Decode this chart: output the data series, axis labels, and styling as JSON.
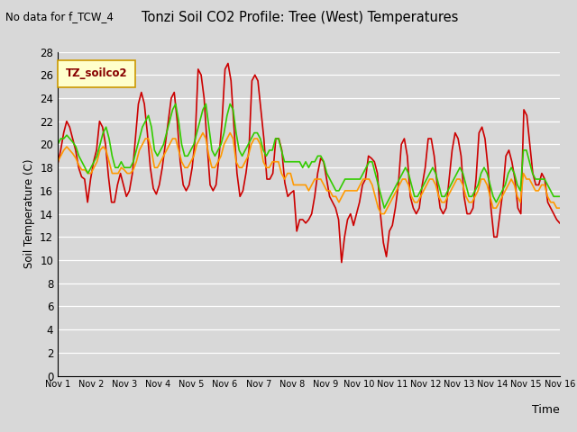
{
  "title": "Tonzi Soil CO2 Profile: Tree (West) Temperatures",
  "subtitle": "No data for f_TCW_4",
  "xlabel": "Time",
  "ylabel": "Soil Temperature (C)",
  "legend_label": "TZ_soilco2",
  "legend_box_color": "#ffffcc",
  "legend_box_edge": "#cc9900",
  "legend_text_color": "#880000",
  "bg_color": "#d8d8d8",
  "ylim": [
    0,
    28
  ],
  "yticks": [
    0,
    2,
    4,
    6,
    8,
    10,
    12,
    14,
    16,
    18,
    20,
    22,
    24,
    26,
    28
  ],
  "xtick_labels": [
    "Nov 1",
    "Nov 2",
    "Nov 3",
    "Nov 4",
    "Nov 5",
    "Nov 6",
    "Nov 7",
    "Nov 8",
    "Nov 9",
    "Nov 10",
    "Nov 11",
    "Nov 12",
    "Nov 13",
    "Nov 14",
    "Nov 15",
    "Nov 16"
  ],
  "series": {
    "neg2cm": {
      "color": "#cc0000",
      "linewidth": 1.2,
      "y": [
        18.3,
        19.5,
        21.0,
        22.0,
        21.5,
        20.5,
        19.5,
        18.0,
        17.2,
        17.0,
        15.0,
        17.0,
        18.5,
        19.5,
        22.0,
        21.5,
        20.0,
        17.2,
        15.0,
        15.0,
        16.5,
        17.5,
        16.5,
        15.5,
        16.0,
        17.5,
        20.5,
        23.5,
        24.5,
        23.5,
        21.0,
        18.0,
        16.2,
        15.7,
        16.5,
        18.0,
        20.0,
        22.0,
        24.0,
        24.5,
        22.0,
        18.5,
        16.5,
        16.0,
        16.5,
        18.0,
        20.5,
        26.5,
        26.0,
        24.0,
        20.0,
        16.5,
        16.0,
        16.5,
        19.0,
        22.0,
        26.5,
        27.0,
        25.5,
        21.5,
        17.5,
        15.5,
        16.0,
        17.5,
        19.5,
        25.5,
        26.0,
        25.5,
        23.0,
        20.5,
        17.0,
        17.0,
        17.5,
        20.5,
        20.5,
        19.5,
        16.7,
        15.5,
        15.8,
        16.0,
        12.5,
        13.5,
        13.5,
        13.2,
        13.5,
        14.0,
        15.5,
        17.5,
        18.8,
        18.5,
        17.0,
        15.5,
        15.0,
        14.5,
        13.5,
        9.8,
        12.0,
        13.5,
        14.0,
        13.0,
        14.0,
        15.0,
        16.5,
        17.0,
        19.0,
        18.8,
        18.5,
        17.5,
        14.0,
        11.5,
        10.3,
        12.5,
        13.0,
        14.5,
        16.5,
        20.0,
        20.5,
        19.0,
        15.5,
        14.5,
        14.0,
        14.5,
        16.5,
        18.0,
        20.5,
        20.5,
        19.0,
        16.5,
        14.5,
        14.0,
        14.5,
        17.0,
        19.5,
        21.0,
        20.5,
        19.0,
        15.5,
        14.0,
        14.0,
        14.5,
        17.0,
        21.0,
        21.5,
        20.5,
        18.0,
        14.5,
        12.0,
        12.0,
        14.0,
        16.0,
        19.0,
        19.5,
        18.5,
        17.0,
        14.5,
        14.0,
        23.0,
        22.5,
        20.0,
        17.5,
        16.5,
        16.5,
        17.5,
        17.0,
        15.0,
        14.5,
        14.0,
        13.5,
        13.2
      ]
    },
    "neg4cm": {
      "color": "#ff9900",
      "linewidth": 1.2,
      "y": [
        18.5,
        19.0,
        19.5,
        19.8,
        19.5,
        19.2,
        18.8,
        18.2,
        17.8,
        17.8,
        17.5,
        17.5,
        18.0,
        18.5,
        19.5,
        19.8,
        19.5,
        18.5,
        17.5,
        17.5,
        17.5,
        18.0,
        17.8,
        17.5,
        17.5,
        17.8,
        18.5,
        19.5,
        20.0,
        20.5,
        20.5,
        19.5,
        18.0,
        18.0,
        18.5,
        19.0,
        19.5,
        20.0,
        20.5,
        20.5,
        19.5,
        18.5,
        18.0,
        18.0,
        18.5,
        19.0,
        20.0,
        20.5,
        21.0,
        20.5,
        19.0,
        18.0,
        18.0,
        18.5,
        19.0,
        20.0,
        20.5,
        21.0,
        20.5,
        18.5,
        18.0,
        18.0,
        18.5,
        19.0,
        20.0,
        20.5,
        20.5,
        20.0,
        18.5,
        18.0,
        18.0,
        18.5,
        18.5,
        18.5,
        17.5,
        17.0,
        17.5,
        17.5,
        16.5,
        16.5,
        16.5,
        16.5,
        16.5,
        16.0,
        16.5,
        17.0,
        17.0,
        17.0,
        16.5,
        16.0,
        16.0,
        15.5,
        15.5,
        15.0,
        15.5,
        16.0,
        16.0,
        16.0,
        16.0,
        16.0,
        16.5,
        17.0,
        17.0,
        17.0,
        16.5,
        15.5,
        14.5,
        14.0,
        14.0,
        14.5,
        15.0,
        15.5,
        16.0,
        16.5,
        17.0,
        17.0,
        16.5,
        15.5,
        15.0,
        15.0,
        15.5,
        16.0,
        16.5,
        17.0,
        17.0,
        16.5,
        15.5,
        15.0,
        15.0,
        15.5,
        16.0,
        16.5,
        17.0,
        17.0,
        16.5,
        15.5,
        15.0,
        15.0,
        15.5,
        16.0,
        17.0,
        17.0,
        16.5,
        15.5,
        14.5,
        14.5,
        15.0,
        15.5,
        16.0,
        16.5,
        17.0,
        16.5,
        15.5,
        15.0,
        17.5,
        17.0,
        17.0,
        16.5,
        16.0,
        16.0,
        16.5,
        16.5,
        15.5,
        15.0,
        15.0,
        14.5,
        14.5
      ]
    },
    "neg8cm": {
      "color": "#33cc00",
      "linewidth": 1.2,
      "y": [
        20.0,
        20.5,
        20.5,
        20.8,
        20.5,
        20.2,
        19.8,
        19.0,
        18.5,
        18.0,
        17.5,
        18.0,
        18.5,
        19.0,
        20.0,
        21.0,
        21.5,
        20.5,
        19.0,
        18.0,
        18.0,
        18.5,
        18.0,
        18.0,
        18.0,
        18.5,
        19.5,
        20.5,
        21.5,
        22.0,
        22.5,
        21.5,
        19.5,
        19.0,
        19.5,
        20.0,
        21.0,
        22.0,
        23.0,
        23.5,
        22.0,
        20.0,
        19.0,
        19.0,
        19.5,
        20.0,
        21.0,
        22.0,
        23.0,
        23.5,
        21.5,
        19.5,
        19.0,
        19.5,
        20.0,
        21.0,
        22.5,
        23.5,
        23.0,
        21.0,
        19.5,
        19.0,
        19.5,
        20.0,
        20.5,
        21.0,
        21.0,
        20.5,
        19.5,
        19.0,
        19.5,
        19.5,
        20.5,
        20.5,
        19.5,
        18.5,
        18.5,
        18.5,
        18.5,
        18.5,
        18.5,
        18.0,
        18.5,
        18.0,
        18.5,
        18.5,
        19.0,
        19.0,
        18.5,
        17.5,
        17.0,
        16.5,
        16.0,
        16.0,
        16.5,
        17.0,
        17.0,
        17.0,
        17.0,
        17.0,
        17.0,
        17.5,
        18.0,
        18.5,
        18.5,
        17.5,
        16.5,
        15.5,
        14.5,
        15.0,
        15.5,
        16.0,
        16.5,
        17.0,
        17.5,
        18.0,
        17.5,
        16.5,
        15.5,
        15.5,
        16.0,
        16.5,
        17.0,
        17.5,
        18.0,
        17.5,
        16.5,
        15.5,
        15.5,
        16.0,
        16.5,
        17.0,
        17.5,
        18.0,
        17.5,
        16.5,
        15.5,
        15.5,
        16.0,
        16.5,
        17.5,
        18.0,
        17.5,
        16.5,
        15.5,
        15.0,
        15.5,
        16.0,
        16.5,
        17.5,
        18.0,
        17.5,
        16.5,
        16.0,
        19.5,
        19.5,
        18.5,
        17.5,
        17.0,
        17.0,
        17.0,
        17.0,
        16.5,
        16.0,
        15.5,
        15.5,
        15.5
      ]
    }
  },
  "x_start": 0,
  "x_end": 15,
  "xtick_positions": [
    0,
    1,
    2,
    3,
    4,
    5,
    6,
    7,
    8,
    9,
    10,
    11,
    12,
    13,
    14,
    15
  ]
}
